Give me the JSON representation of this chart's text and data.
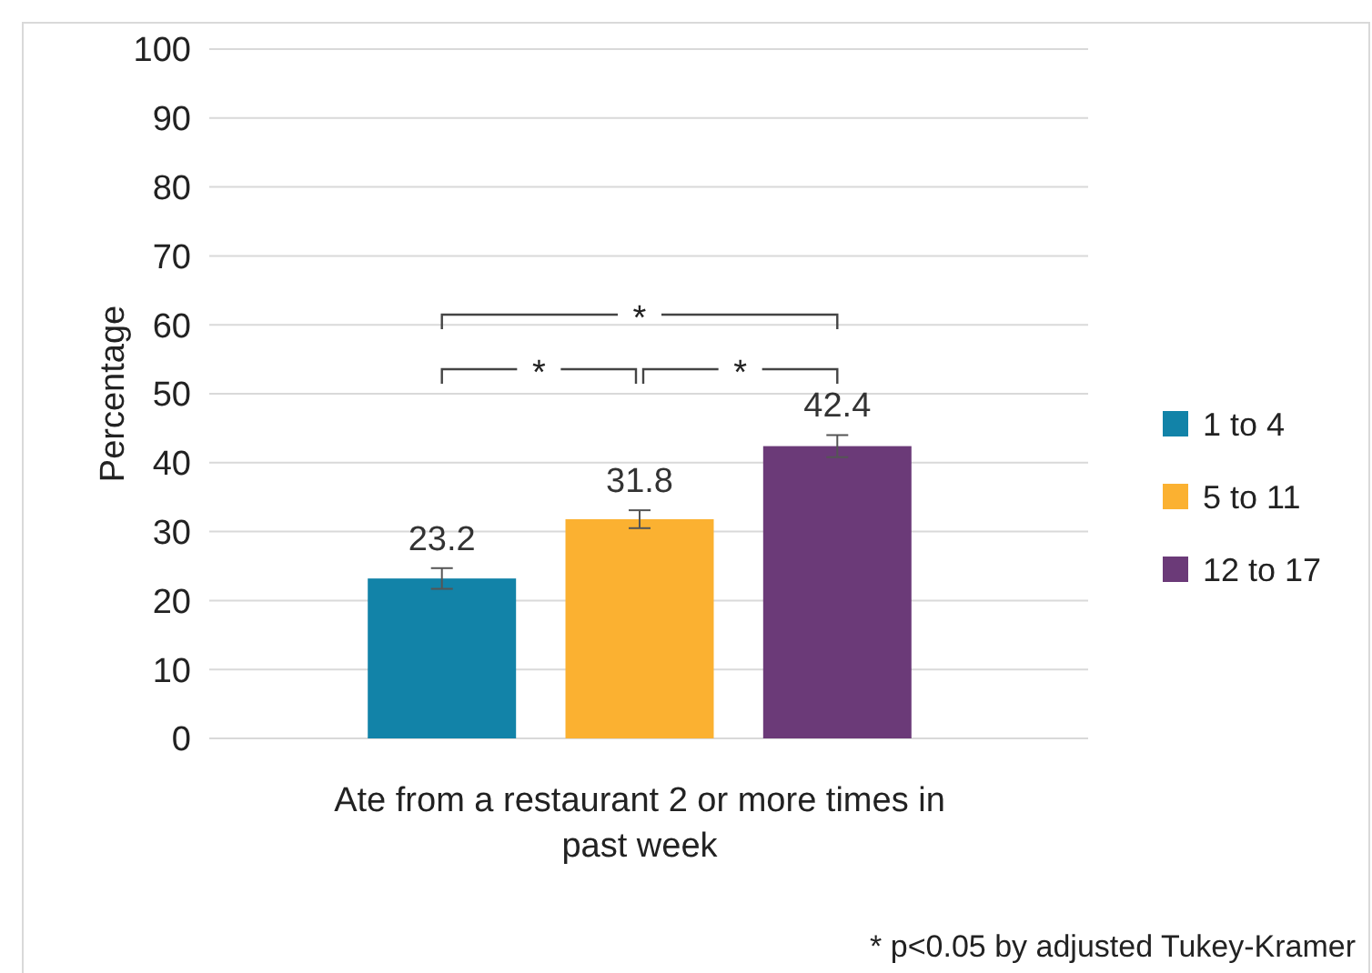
{
  "chart_data": {
    "type": "bar",
    "categories": [
      "Ate from a restaurant 2 or more times in past week"
    ],
    "ylabel": "Percentage",
    "ylim": [
      0,
      100
    ],
    "yticks": [
      0,
      10,
      20,
      30,
      40,
      50,
      60,
      70,
      80,
      90,
      100
    ],
    "grid": "y",
    "legend": "right",
    "data_labels": true,
    "series": [
      {
        "name": "1 to 4",
        "color": "#1283a8",
        "values": [
          23.2
        ],
        "errors": [
          1.5
        ]
      },
      {
        "name": "5 to 11",
        "color": "#fbb131",
        "values": [
          31.8
        ],
        "errors": [
          1.3
        ]
      },
      {
        "name": "12 to 17",
        "color": "#6b3a78",
        "values": [
          42.4
        ],
        "errors": [
          1.6
        ]
      }
    ],
    "annotations": [
      "*",
      "*",
      "*",
      "* p<0.05 by adjusted Tukey-Kramer"
    ]
  }
}
